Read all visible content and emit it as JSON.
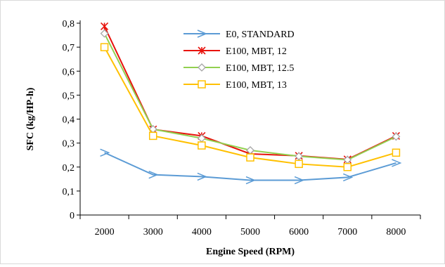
{
  "chart_data": {
    "type": "line",
    "title": "",
    "xlabel": "Engine Speed (RPM)",
    "ylabel": "SFC (kg/HP-h)",
    "categories": [
      "2000",
      "3000",
      "4000",
      "5000",
      "6000",
      "7000",
      "8000"
    ],
    "ylim": [
      0,
      0.8
    ],
    "yticks": [
      "0",
      "0,1",
      "0,2",
      "0,3",
      "0,4",
      "0,5",
      "0,6",
      "0,7",
      "0,8"
    ],
    "grid": false,
    "legend_position": "top-right",
    "series": [
      {
        "name": "E0, STANDARD",
        "color": "#5b9bd5",
        "marker": "arrow-tri",
        "values": [
          0.26,
          0.168,
          0.16,
          0.145,
          0.145,
          0.157,
          0.217
        ]
      },
      {
        "name": "E100, MBT, 12",
        "color": "#e8120c",
        "marker": "asterisk",
        "values": [
          0.787,
          0.357,
          0.33,
          0.255,
          0.247,
          0.232,
          0.33
        ]
      },
      {
        "name": "E100, MBT, 12.5",
        "color": "#92d050",
        "marker": "diamond",
        "values": [
          0.757,
          0.358,
          0.32,
          0.27,
          0.245,
          0.23,
          0.327
        ]
      },
      {
        "name": "E100, MBT, 13",
        "color": "#ffc000",
        "marker": "square",
        "values": [
          0.7,
          0.33,
          0.29,
          0.24,
          0.213,
          0.2,
          0.26
        ]
      }
    ]
  }
}
